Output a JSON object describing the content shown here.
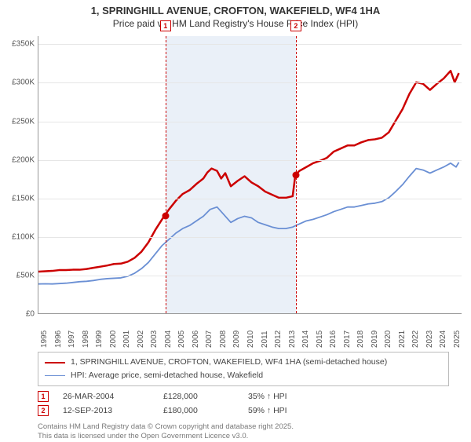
{
  "title": {
    "line1": "1, SPRINGHILL AVENUE, CROFTON, WAKEFIELD, WF4 1HA",
    "line2": "Price paid vs. HM Land Registry's House Price Index (HPI)"
  },
  "chart": {
    "type": "line",
    "background_color": "#ffffff",
    "grid_color": "#e6e6e6",
    "axis_color": "#999999",
    "text_color": "#555555",
    "x_range": [
      1995,
      2025.8
    ],
    "y_range": [
      0,
      360000
    ],
    "y_ticks": [
      0,
      50000,
      100000,
      150000,
      200000,
      250000,
      300000,
      350000
    ],
    "y_tick_labels": [
      "£0",
      "£50K",
      "£100K",
      "£150K",
      "£200K",
      "£250K",
      "£300K",
      "£350K"
    ],
    "x_ticks": [
      1995,
      1996,
      1997,
      1998,
      1999,
      2000,
      2001,
      2002,
      2003,
      2004,
      2005,
      2006,
      2007,
      2008,
      2009,
      2010,
      2011,
      2012,
      2013,
      2014,
      2015,
      2016,
      2017,
      2018,
      2019,
      2020,
      2021,
      2022,
      2023,
      2024,
      2025
    ],
    "shade_band": {
      "x_start": 2004.23,
      "x_end": 2013.7,
      "color": "rgba(180,200,230,0.28)"
    },
    "series": [
      {
        "id": "price_paid",
        "label": "1, SPRINGHILL AVENUE, CROFTON, WAKEFIELD, WF4 1HA (semi-detached house)",
        "color": "#cc0000",
        "line_width": 2.5,
        "points": [
          [
            1995.0,
            54000
          ],
          [
            1995.5,
            54500
          ],
          [
            1996.0,
            55000
          ],
          [
            1996.5,
            56000
          ],
          [
            1997.0,
            56000
          ],
          [
            1997.5,
            56500
          ],
          [
            1998.0,
            56500
          ],
          [
            1998.5,
            57500
          ],
          [
            1999.0,
            59000
          ],
          [
            1999.5,
            60500
          ],
          [
            2000.0,
            62000
          ],
          [
            2000.5,
            64000
          ],
          [
            2001.0,
            64500
          ],
          [
            2001.5,
            67000
          ],
          [
            2002.0,
            72000
          ],
          [
            2002.5,
            80000
          ],
          [
            2003.0,
            92000
          ],
          [
            2003.5,
            108000
          ],
          [
            2004.0,
            122000
          ],
          [
            2004.23,
            128000
          ],
          [
            2004.5,
            135000
          ],
          [
            2005.0,
            146000
          ],
          [
            2005.5,
            155000
          ],
          [
            2006.0,
            160000
          ],
          [
            2006.5,
            168000
          ],
          [
            2007.0,
            175000
          ],
          [
            2007.3,
            183000
          ],
          [
            2007.6,
            188000
          ],
          [
            2008.0,
            185000
          ],
          [
            2008.3,
            175000
          ],
          [
            2008.6,
            182000
          ],
          [
            2009.0,
            165000
          ],
          [
            2009.5,
            172000
          ],
          [
            2010.0,
            178000
          ],
          [
            2010.5,
            170000
          ],
          [
            2011.0,
            165000
          ],
          [
            2011.5,
            158000
          ],
          [
            2012.0,
            154000
          ],
          [
            2012.5,
            150000
          ],
          [
            2013.0,
            150000
          ],
          [
            2013.5,
            152000
          ],
          [
            2013.7,
            180000
          ],
          [
            2014.0,
            185000
          ],
          [
            2014.5,
            190000
          ],
          [
            2015.0,
            195000
          ],
          [
            2015.5,
            198000
          ],
          [
            2016.0,
            202000
          ],
          [
            2016.5,
            210000
          ],
          [
            2017.0,
            214000
          ],
          [
            2017.5,
            218000
          ],
          [
            2018.0,
            218000
          ],
          [
            2018.5,
            222000
          ],
          [
            2019.0,
            225000
          ],
          [
            2019.5,
            226000
          ],
          [
            2020.0,
            228000
          ],
          [
            2020.5,
            235000
          ],
          [
            2021.0,
            250000
          ],
          [
            2021.5,
            265000
          ],
          [
            2022.0,
            285000
          ],
          [
            2022.5,
            300000
          ],
          [
            2023.0,
            298000
          ],
          [
            2023.5,
            290000
          ],
          [
            2024.0,
            298000
          ],
          [
            2024.5,
            305000
          ],
          [
            2025.0,
            315000
          ],
          [
            2025.3,
            300000
          ],
          [
            2025.6,
            312000
          ]
        ]
      },
      {
        "id": "hpi",
        "label": "HPI: Average price, semi-detached house, Wakefield",
        "color": "#6a8fd4",
        "line_width": 1.8,
        "points": [
          [
            1995.0,
            38000
          ],
          [
            1995.5,
            38200
          ],
          [
            1996.0,
            38000
          ],
          [
            1996.5,
            38500
          ],
          [
            1997.0,
            39000
          ],
          [
            1997.5,
            40000
          ],
          [
            1998.0,
            41000
          ],
          [
            1998.5,
            41500
          ],
          [
            1999.0,
            42500
          ],
          [
            1999.5,
            44000
          ],
          [
            2000.0,
            45000
          ],
          [
            2000.5,
            45500
          ],
          [
            2001.0,
            46000
          ],
          [
            2001.5,
            48000
          ],
          [
            2002.0,
            52000
          ],
          [
            2002.5,
            58000
          ],
          [
            2003.0,
            66000
          ],
          [
            2003.5,
            77000
          ],
          [
            2004.0,
            88000
          ],
          [
            2004.5,
            96000
          ],
          [
            2005.0,
            104000
          ],
          [
            2005.5,
            110000
          ],
          [
            2006.0,
            114000
          ],
          [
            2006.5,
            120000
          ],
          [
            2007.0,
            126000
          ],
          [
            2007.5,
            135000
          ],
          [
            2008.0,
            138000
          ],
          [
            2008.5,
            128000
          ],
          [
            2009.0,
            118000
          ],
          [
            2009.5,
            123000
          ],
          [
            2010.0,
            126000
          ],
          [
            2010.5,
            124000
          ],
          [
            2011.0,
            118000
          ],
          [
            2011.5,
            115000
          ],
          [
            2012.0,
            112000
          ],
          [
            2012.5,
            110000
          ],
          [
            2013.0,
            110000
          ],
          [
            2013.5,
            112000
          ],
          [
            2014.0,
            116000
          ],
          [
            2014.5,
            120000
          ],
          [
            2015.0,
            122000
          ],
          [
            2015.5,
            125000
          ],
          [
            2016.0,
            128000
          ],
          [
            2016.5,
            132000
          ],
          [
            2017.0,
            135000
          ],
          [
            2017.5,
            138000
          ],
          [
            2018.0,
            138000
          ],
          [
            2018.5,
            140000
          ],
          [
            2019.0,
            142000
          ],
          [
            2019.5,
            143000
          ],
          [
            2020.0,
            145000
          ],
          [
            2020.5,
            150000
          ],
          [
            2021.0,
            158000
          ],
          [
            2021.5,
            167000
          ],
          [
            2022.0,
            178000
          ],
          [
            2022.5,
            188000
          ],
          [
            2023.0,
            186000
          ],
          [
            2023.5,
            182000
          ],
          [
            2024.0,
            186000
          ],
          [
            2024.5,
            190000
          ],
          [
            2025.0,
            195000
          ],
          [
            2025.4,
            190000
          ],
          [
            2025.6,
            196000
          ]
        ]
      }
    ],
    "markers": [
      {
        "id": "1",
        "x": 2004.23,
        "y": 128000,
        "line_color": "#cc0000",
        "dot_color": "#cc0000"
      },
      {
        "id": "2",
        "x": 2013.7,
        "y": 180000,
        "line_color": "#cc0000",
        "dot_color": "#cc0000"
      }
    ]
  },
  "legend": {
    "items": [
      {
        "color": "#cc0000",
        "width": 2.5,
        "text": "1, SPRINGHILL AVENUE, CROFTON, WAKEFIELD, WF4 1HA (semi-detached house)"
      },
      {
        "color": "#6a8fd4",
        "width": 1.8,
        "text": "HPI: Average price, semi-detached house, Wakefield"
      }
    ]
  },
  "transactions": [
    {
      "badge": "1",
      "date": "26-MAR-2004",
      "price": "£128,000",
      "note": "35% ↑ HPI"
    },
    {
      "badge": "2",
      "date": "12-SEP-2013",
      "price": "£180,000",
      "note": "59% ↑ HPI"
    }
  ],
  "attribution": {
    "line1": "Contains HM Land Registry data © Crown copyright and database right 2025.",
    "line2": "This data is licensed under the Open Government Licence v3.0."
  }
}
